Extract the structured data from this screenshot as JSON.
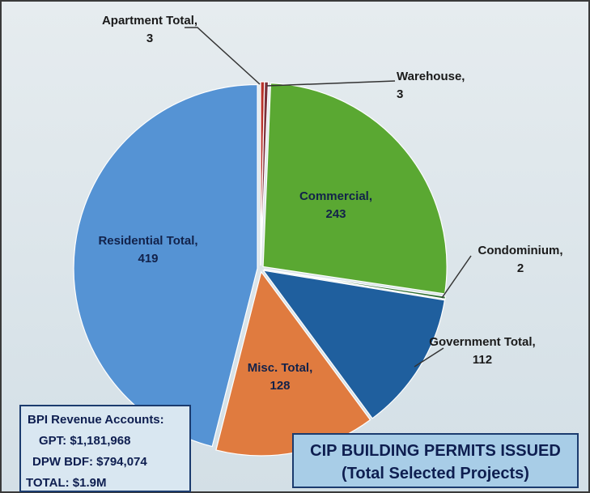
{
  "chart_data": {
    "type": "pie",
    "title": "CIP BUILDING PERMITS ISSUED",
    "subtitle": "(Total Selected Projects)",
    "categories": [
      "Apartment Total,",
      "Warehouse,",
      "Commercial,",
      "Condominium,",
      "Government Total,",
      "Misc. Total,",
      "Residential Total,"
    ],
    "values": [
      3,
      3,
      243,
      2,
      112,
      128,
      419
    ],
    "colors": [
      "#b8322a",
      "#7a2f3a",
      "#5aa832",
      "#2e6e30",
      "#1f5f9e",
      "#e07b3f",
      "#5593d4"
    ],
    "annotations": [
      "BPI Revenue Accounts:",
      "GPT:  $1,181,968",
      "DPW BDF:  $794,074",
      "TOTAL:  $1.9M"
    ]
  }
}
